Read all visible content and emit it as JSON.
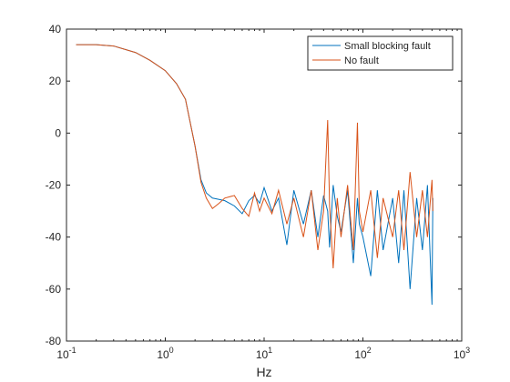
{
  "chart_data": {
    "type": "line",
    "xlabel": "Hz",
    "xscale": "log",
    "x": [
      0.125,
      0.2,
      0.3,
      0.5,
      0.7,
      1,
      1.3,
      1.6,
      2,
      2.3,
      2.6,
      3,
      3.5,
      4,
      5,
      6,
      7,
      8,
      9,
      10,
      12,
      14,
      17,
      20,
      25,
      30,
      35,
      40,
      44,
      46,
      50,
      55,
      60,
      70,
      80,
      88,
      92,
      100,
      120,
      140,
      160,
      200,
      230,
      260,
      300,
      350,
      400,
      450,
      500,
      510
    ],
    "series": [
      {
        "name": "Small blocking fault",
        "color": "#0072BD",
        "values": [
          34,
          34,
          33.5,
          31,
          28,
          24,
          19,
          13,
          -5,
          -18,
          -23,
          -25,
          -25.5,
          -26,
          -28,
          -31,
          -26,
          -24,
          -27,
          -21,
          -30,
          -25,
          -43,
          -22,
          -35,
          -22,
          -40,
          -24,
          -30,
          -44,
          -20,
          -32,
          -38,
          -22,
          -50,
          -25,
          -35,
          -40,
          -55,
          -22,
          -45,
          -25,
          -50,
          -22,
          -60,
          -25,
          -45,
          -20,
          -66,
          -25
        ]
      },
      {
        "name": "No fault",
        "color": "#D95319",
        "values": [
          34,
          34,
          33.5,
          31,
          28,
          24,
          19,
          13,
          -5,
          -19,
          -25,
          -29,
          -27,
          -25,
          -24,
          -29,
          -32,
          -23,
          -30,
          -25,
          -31,
          -22,
          -35,
          -25,
          -40,
          -22,
          -45,
          -30,
          5,
          -28,
          -52,
          -25,
          -40,
          -20,
          -45,
          4,
          -30,
          -38,
          -22,
          -48,
          -25,
          -40,
          -22,
          -45,
          -15,
          -40,
          -22,
          -40,
          -18,
          -30
        ]
      }
    ],
    "xlim": [
      0.1,
      1000
    ],
    "xticks": [
      {
        "value": 0.1,
        "label": "10^-1"
      },
      {
        "value": 1,
        "label": "10^0"
      },
      {
        "value": 10,
        "label": "10^1"
      },
      {
        "value": 100,
        "label": "10^2"
      },
      {
        "value": 1000,
        "label": "10^3"
      }
    ],
    "ylim": [
      -80,
      40
    ],
    "yticks": [
      -80,
      -60,
      -40,
      -20,
      0,
      20,
      40
    ],
    "grid": false,
    "legend": "northeast"
  }
}
